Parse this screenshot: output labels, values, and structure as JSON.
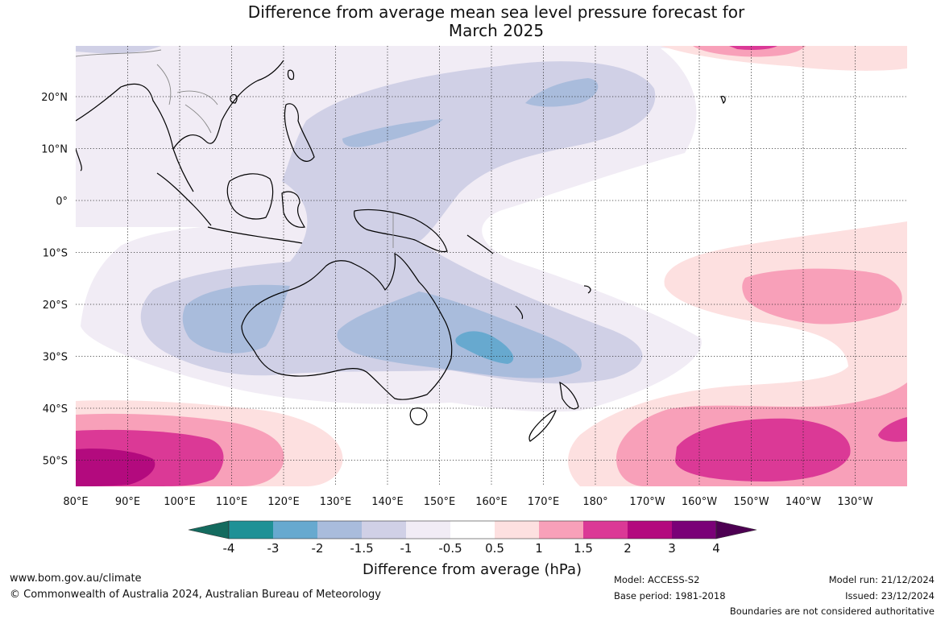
{
  "title_line1": "Difference from average mean sea level pressure forecast for",
  "title_line2": "March 2025",
  "lat_labels": [
    "20°N",
    "10°N",
    "0°",
    "10°S",
    "20°S",
    "30°S",
    "40°S",
    "50°S"
  ],
  "lon_labels": [
    "80°E",
    "90°E",
    "100°E",
    "110°E",
    "120°E",
    "130°E",
    "140°E",
    "150°E",
    "160°E",
    "170°E",
    "180°",
    "170°W",
    "160°W",
    "150°W",
    "140°W",
    "130°W"
  ],
  "colorbar": {
    "title": "Difference from average (hPa)",
    "labels": [
      "-4",
      "-3",
      "-2",
      "-1.5",
      "-1",
      "-0.5",
      "0.5",
      "1",
      "1.5",
      "2",
      "3",
      "4"
    ],
    "colors": [
      "#146b5f",
      "#1f9196",
      "#67a9cf",
      "#a9bcdc",
      "#d0d0e6",
      "#f1ecf5",
      "#ffffff",
      "#fde0e0",
      "#f8a0b9",
      "#db3996",
      "#b30a7e",
      "#7a0177",
      "#4d0052"
    ]
  },
  "footer": {
    "website": "www.bom.gov.au/climate",
    "copyright": "© Commonwealth of Australia 2024, Australian Bureau of Meteorology",
    "model": "Model: ACCESS-S2",
    "base_period": "Base period: 1981-2018",
    "model_run": "Model run: 21/12/2024",
    "issued": "Issued: 23/12/2024",
    "disclaimer": "Boundaries are not considered authoritative"
  }
}
